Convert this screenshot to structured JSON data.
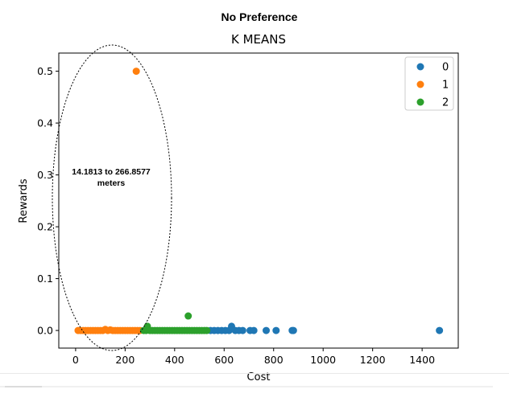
{
  "suptitle": "No Preference",
  "chart_data": {
    "type": "scatter",
    "title": "K MEANS",
    "xlabel": "Cost",
    "ylabel": "Rewards",
    "xlim": [
      -68,
      1546
    ],
    "ylim": [
      -0.034,
      0.535
    ],
    "xticks": [
      "0",
      "200",
      "400",
      "600",
      "800",
      "1000",
      "1200",
      "1400"
    ],
    "xtick_values": [
      0,
      200,
      400,
      600,
      800,
      1000,
      1200,
      1400
    ],
    "yticks": [
      "0.0",
      "0.1",
      "0.2",
      "0.3",
      "0.4",
      "0.5"
    ],
    "ytick_values": [
      0.0,
      0.1,
      0.2,
      0.3,
      0.4,
      0.5
    ],
    "legend_position": "top-right",
    "series": [
      {
        "name": "0",
        "color": "#1f77b4",
        "points": [
          [
            545,
            0
          ],
          [
            560,
            0
          ],
          [
            575,
            0
          ],
          [
            590,
            0
          ],
          [
            605,
            0
          ],
          [
            620,
            0
          ],
          [
            630,
            0.008
          ],
          [
            645,
            0
          ],
          [
            660,
            0
          ],
          [
            675,
            0
          ],
          [
            705,
            0
          ],
          [
            720,
            0
          ],
          [
            770,
            0
          ],
          [
            810,
            0
          ],
          [
            875,
            0
          ],
          [
            880,
            0
          ],
          [
            1470,
            0
          ]
        ]
      },
      {
        "name": "1",
        "color": "#ff7f0e",
        "points": [
          [
            10,
            0
          ],
          [
            20,
            0
          ],
          [
            30,
            0
          ],
          [
            40,
            0
          ],
          [
            50,
            0
          ],
          [
            60,
            0
          ],
          [
            70,
            0
          ],
          [
            80,
            0
          ],
          [
            90,
            0
          ],
          [
            100,
            0
          ],
          [
            110,
            0
          ],
          [
            120,
            0.002
          ],
          [
            130,
            0
          ],
          [
            140,
            0.001
          ],
          [
            150,
            0
          ],
          [
            160,
            0
          ],
          [
            170,
            0
          ],
          [
            180,
            0
          ],
          [
            190,
            0
          ],
          [
            200,
            0
          ],
          [
            210,
            0
          ],
          [
            220,
            0
          ],
          [
            230,
            0
          ],
          [
            240,
            0
          ],
          [
            250,
            0
          ],
          [
            260,
            0
          ],
          [
            245,
            0.5
          ]
        ]
      },
      {
        "name": "2",
        "color": "#2ca02c",
        "points": [
          [
            275,
            0
          ],
          [
            285,
            0
          ],
          [
            290,
            0.008
          ],
          [
            300,
            0
          ],
          [
            310,
            0
          ],
          [
            320,
            0
          ],
          [
            330,
            0
          ],
          [
            340,
            0
          ],
          [
            350,
            0
          ],
          [
            360,
            0
          ],
          [
            370,
            0
          ],
          [
            380,
            0
          ],
          [
            390,
            0
          ],
          [
            400,
            0
          ],
          [
            410,
            0
          ],
          [
            420,
            0
          ],
          [
            430,
            0
          ],
          [
            440,
            0
          ],
          [
            450,
            0
          ],
          [
            460,
            0
          ],
          [
            470,
            0
          ],
          [
            480,
            0
          ],
          [
            490,
            0
          ],
          [
            500,
            0
          ],
          [
            510,
            0
          ],
          [
            520,
            0
          ],
          [
            530,
            0
          ],
          [
            455,
            0.028
          ]
        ]
      }
    ],
    "annotation": {
      "lines": [
        "14.1813 to 266.8577",
        "meters"
      ]
    }
  }
}
